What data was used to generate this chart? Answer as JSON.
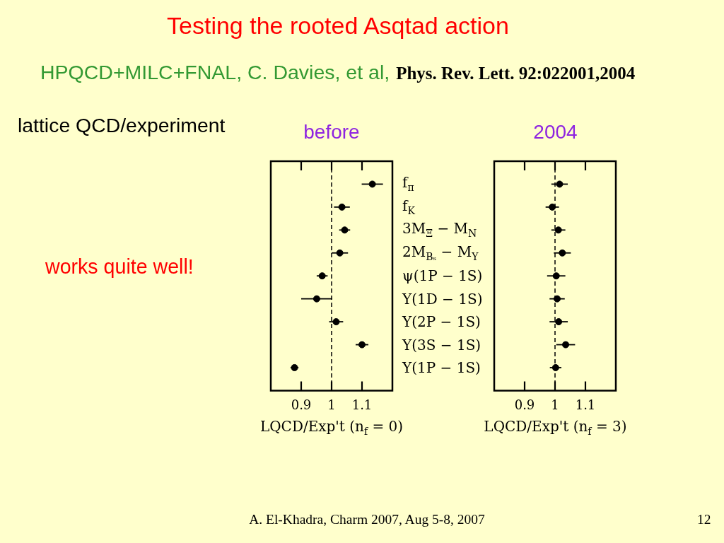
{
  "chart_data": [
    {
      "type": "scatter",
      "title": "before",
      "orientation": "horizontal",
      "categories": [
        "f$_{π}$",
        "f$_{K}$",
        "3M$_{Ξ}$ − M$_{N}$",
        "2M$_{Bₛ}$ − M$_{Υ}$",
        "ψ(1P − 1S)",
        "Υ(1D − 1S)",
        "Υ(2P − 1S)",
        "Υ(3S − 1S)",
        "Υ(1P − 1S)"
      ],
      "series": [
        {
          "color": "#000000",
          "values": [
            1.134,
            1.034,
            1.043,
            1.027,
            0.969,
            0.951,
            1.015,
            1.1,
            0.878
          ],
          "errors": [
            0.035,
            0.026,
            0.018,
            0.027,
            0.018,
            0.051,
            0.023,
            0.021,
            0.013
          ]
        }
      ],
      "xlim": [
        0.8,
        1.2
      ],
      "xticks": [
        0.9,
        1,
        1.1
      ],
      "xlabel": "LQCD/Exp't (n$_{f}$ = 0)",
      "ref_lines": [
        {
          "axis": "x",
          "value": 1,
          "color": "#000000",
          "line_style": "dashed"
        }
      ],
      "marker": "circle",
      "annotations": [
        "Testing the rooted Asqtad action",
        "HPQCD+MILC+FNAL, C. Davies, et al,",
        "Phys. Rev. Lett. 92:022001,2004",
        "lattice QCD/experiment",
        "works quite well!",
        "A. El-Khadra, Charm 2007, Aug 5-8, 2007",
        "12"
      ]
    },
    {
      "type": "scatter",
      "title": "2004",
      "orientation": "horizontal",
      "categories": [
        "f$_{π}$",
        "f$_{K}$",
        "3M$_{Ξ}$ − M$_{N}$",
        "2M$_{Bₛ}$ − M$_{Υ}$",
        "ψ(1P − 1S)",
        "Υ(1D − 1S)",
        "Υ(2P − 1S)",
        "Υ(3S − 1S)",
        "Υ(1P − 1S)"
      ],
      "series": [
        {
          "color": "#000000",
          "values": [
            1.015,
            0.991,
            1.011,
            1.024,
            1.004,
            1.007,
            1.012,
            1.035,
            1.002
          ],
          "errors": [
            0.027,
            0.022,
            0.023,
            0.028,
            0.03,
            0.025,
            0.03,
            0.031,
            0.019
          ]
        }
      ],
      "xlim": [
        0.8,
        1.2
      ],
      "xticks": [
        0.9,
        1,
        1.1
      ],
      "xlabel": "LQCD/Exp't (n$_{f}$ = 3)",
      "ref_lines": [
        {
          "axis": "x",
          "value": 1,
          "color": "#000000",
          "line_style": "dashed"
        }
      ],
      "marker": "circle",
      "tick_labels": "x"
    }
  ]
}
